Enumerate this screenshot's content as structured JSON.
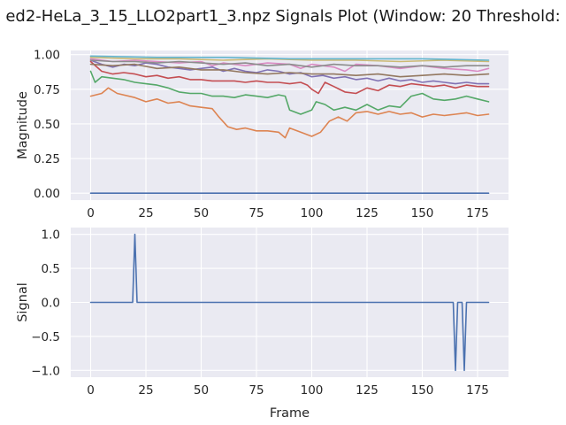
{
  "figure": {
    "title": "ed2-HeLa_3_15_LLO2part1_3.npz Signals Plot (Window: 20 Threshold:",
    "background": "#ffffff",
    "axes_facecolor": "#eaeaf2",
    "grid_color": "#ffffff"
  },
  "chart_data": [
    {
      "type": "line",
      "xlabel": "",
      "ylabel": "Magnitude",
      "xlim": [
        -9,
        189
      ],
      "ylim": [
        -0.05,
        1.03
      ],
      "xticks": [
        0,
        25,
        50,
        75,
        100,
        125,
        150,
        175
      ],
      "yticks": [
        0.0,
        0.25,
        0.5,
        0.75,
        1.0
      ],
      "xtick_labels": [
        "0",
        "25",
        "50",
        "75",
        "100",
        "125",
        "150",
        "175"
      ],
      "ytick_labels": [
        "0.00",
        "0.25",
        "0.50",
        "0.75",
        "1.00"
      ],
      "grid": true,
      "series": [
        {
          "color": "#4c72b0",
          "points": [
            [
              0,
              0.0
            ],
            [
              180,
              0.0
            ]
          ]
        },
        {
          "color": "#dd8452",
          "points": [
            [
              0,
              0.7
            ],
            [
              5,
              0.72
            ],
            [
              8,
              0.76
            ],
            [
              12,
              0.72
            ],
            [
              20,
              0.69
            ],
            [
              25,
              0.66
            ],
            [
              30,
              0.68
            ],
            [
              35,
              0.65
            ],
            [
              40,
              0.66
            ],
            [
              45,
              0.63
            ],
            [
              50,
              0.62
            ],
            [
              55,
              0.61
            ],
            [
              58,
              0.55
            ],
            [
              62,
              0.48
            ],
            [
              66,
              0.46
            ],
            [
              70,
              0.47
            ],
            [
              75,
              0.45
            ],
            [
              80,
              0.45
            ],
            [
              85,
              0.44
            ],
            [
              88,
              0.4
            ],
            [
              90,
              0.47
            ],
            [
              95,
              0.44
            ],
            [
              100,
              0.41
            ],
            [
              104,
              0.44
            ],
            [
              108,
              0.52
            ],
            [
              112,
              0.55
            ],
            [
              116,
              0.52
            ],
            [
              120,
              0.58
            ],
            [
              125,
              0.59
            ],
            [
              130,
              0.57
            ],
            [
              135,
              0.59
            ],
            [
              140,
              0.57
            ],
            [
              145,
              0.58
            ],
            [
              150,
              0.55
            ],
            [
              155,
              0.57
            ],
            [
              160,
              0.56
            ],
            [
              165,
              0.57
            ],
            [
              170,
              0.58
            ],
            [
              175,
              0.56
            ],
            [
              180,
              0.57
            ]
          ]
        },
        {
          "color": "#55a868",
          "points": [
            [
              0,
              0.88
            ],
            [
              2,
              0.8
            ],
            [
              5,
              0.84
            ],
            [
              10,
              0.83
            ],
            [
              15,
              0.82
            ],
            [
              20,
              0.8
            ],
            [
              25,
              0.79
            ],
            [
              30,
              0.78
            ],
            [
              35,
              0.76
            ],
            [
              40,
              0.73
            ],
            [
              45,
              0.72
            ],
            [
              50,
              0.72
            ],
            [
              55,
              0.7
            ],
            [
              60,
              0.7
            ],
            [
              65,
              0.69
            ],
            [
              70,
              0.71
            ],
            [
              75,
              0.7
            ],
            [
              80,
              0.69
            ],
            [
              85,
              0.71
            ],
            [
              88,
              0.7
            ],
            [
              90,
              0.6
            ],
            [
              95,
              0.57
            ],
            [
              100,
              0.6
            ],
            [
              102,
              0.66
            ],
            [
              106,
              0.64
            ],
            [
              110,
              0.6
            ],
            [
              115,
              0.62
            ],
            [
              120,
              0.6
            ],
            [
              125,
              0.64
            ],
            [
              130,
              0.6
            ],
            [
              135,
              0.63
            ],
            [
              140,
              0.62
            ],
            [
              145,
              0.7
            ],
            [
              150,
              0.72
            ],
            [
              155,
              0.68
            ],
            [
              160,
              0.67
            ],
            [
              165,
              0.68
            ],
            [
              170,
              0.7
            ],
            [
              175,
              0.68
            ],
            [
              180,
              0.66
            ]
          ]
        },
        {
          "color": "#c44e52",
          "points": [
            [
              0,
              0.95
            ],
            [
              5,
              0.88
            ],
            [
              10,
              0.86
            ],
            [
              15,
              0.87
            ],
            [
              20,
              0.86
            ],
            [
              25,
              0.84
            ],
            [
              30,
              0.85
            ],
            [
              35,
              0.83
            ],
            [
              40,
              0.84
            ],
            [
              45,
              0.82
            ],
            [
              50,
              0.82
            ],
            [
              55,
              0.81
            ],
            [
              60,
              0.81
            ],
            [
              65,
              0.81
            ],
            [
              70,
              0.8
            ],
            [
              75,
              0.81
            ],
            [
              80,
              0.8
            ],
            [
              85,
              0.8
            ],
            [
              90,
              0.79
            ],
            [
              95,
              0.8
            ],
            [
              98,
              0.78
            ],
            [
              100,
              0.75
            ],
            [
              103,
              0.72
            ],
            [
              106,
              0.8
            ],
            [
              110,
              0.77
            ],
            [
              115,
              0.73
            ],
            [
              120,
              0.72
            ],
            [
              125,
              0.76
            ],
            [
              130,
              0.74
            ],
            [
              135,
              0.78
            ],
            [
              140,
              0.77
            ],
            [
              145,
              0.79
            ],
            [
              150,
              0.78
            ],
            [
              155,
              0.77
            ],
            [
              160,
              0.78
            ],
            [
              165,
              0.76
            ],
            [
              170,
              0.78
            ],
            [
              175,
              0.77
            ],
            [
              180,
              0.77
            ]
          ]
        },
        {
          "color": "#8172b3",
          "points": [
            [
              0,
              0.96
            ],
            [
              5,
              0.93
            ],
            [
              10,
              0.91
            ],
            [
              15,
              0.93
            ],
            [
              20,
              0.92
            ],
            [
              25,
              0.94
            ],
            [
              30,
              0.93
            ],
            [
              35,
              0.91
            ],
            [
              40,
              0.9
            ],
            [
              45,
              0.89
            ],
            [
              50,
              0.9
            ],
            [
              55,
              0.91
            ],
            [
              60,
              0.88
            ],
            [
              65,
              0.9
            ],
            [
              70,
              0.88
            ],
            [
              75,
              0.87
            ],
            [
              80,
              0.89
            ],
            [
              85,
              0.88
            ],
            [
              90,
              0.86
            ],
            [
              95,
              0.87
            ],
            [
              100,
              0.84
            ],
            [
              105,
              0.85
            ],
            [
              110,
              0.83
            ],
            [
              115,
              0.84
            ],
            [
              120,
              0.82
            ],
            [
              125,
              0.83
            ],
            [
              130,
              0.81
            ],
            [
              135,
              0.83
            ],
            [
              140,
              0.81
            ],
            [
              145,
              0.82
            ],
            [
              150,
              0.8
            ],
            [
              155,
              0.81
            ],
            [
              160,
              0.8
            ],
            [
              165,
              0.79
            ],
            [
              170,
              0.8
            ],
            [
              175,
              0.79
            ],
            [
              180,
              0.79
            ]
          ]
        },
        {
          "color": "#937860",
          "points": [
            [
              0,
              0.93
            ],
            [
              10,
              0.92
            ],
            [
              20,
              0.93
            ],
            [
              30,
              0.9
            ],
            [
              40,
              0.91
            ],
            [
              50,
              0.89
            ],
            [
              60,
              0.89
            ],
            [
              70,
              0.87
            ],
            [
              80,
              0.86
            ],
            [
              90,
              0.87
            ],
            [
              100,
              0.86
            ],
            [
              110,
              0.86
            ],
            [
              120,
              0.85
            ],
            [
              130,
              0.86
            ],
            [
              140,
              0.84
            ],
            [
              150,
              0.85
            ],
            [
              160,
              0.86
            ],
            [
              170,
              0.85
            ],
            [
              180,
              0.86
            ]
          ]
        },
        {
          "color": "#da8bc3",
          "points": [
            [
              0,
              0.97
            ],
            [
              10,
              0.95
            ],
            [
              20,
              0.96
            ],
            [
              30,
              0.95
            ],
            [
              40,
              0.94
            ],
            [
              50,
              0.95
            ],
            [
              55,
              0.92
            ],
            [
              60,
              0.94
            ],
            [
              70,
              0.92
            ],
            [
              80,
              0.94
            ],
            [
              90,
              0.93
            ],
            [
              95,
              0.9
            ],
            [
              100,
              0.93
            ],
            [
              110,
              0.91
            ],
            [
              115,
              0.88
            ],
            [
              120,
              0.93
            ],
            [
              130,
              0.92
            ],
            [
              140,
              0.9
            ],
            [
              150,
              0.92
            ],
            [
              160,
              0.9
            ],
            [
              170,
              0.89
            ],
            [
              175,
              0.88
            ],
            [
              180,
              0.9
            ]
          ]
        },
        {
          "color": "#8c8c8c",
          "points": [
            [
              0,
              0.96
            ],
            [
              10,
              0.95
            ],
            [
              20,
              0.95
            ],
            [
              30,
              0.94
            ],
            [
              40,
              0.95
            ],
            [
              50,
              0.94
            ],
            [
              60,
              0.93
            ],
            [
              70,
              0.94
            ],
            [
              80,
              0.92
            ],
            [
              90,
              0.93
            ],
            [
              100,
              0.91
            ],
            [
              110,
              0.93
            ],
            [
              120,
              0.92
            ],
            [
              130,
              0.92
            ],
            [
              140,
              0.91
            ],
            [
              150,
              0.92
            ],
            [
              160,
              0.91
            ],
            [
              170,
              0.92
            ],
            [
              180,
              0.92
            ]
          ]
        },
        {
          "color": "#ccb974",
          "points": [
            [
              0,
              0.98
            ],
            [
              20,
              0.97
            ],
            [
              40,
              0.97
            ],
            [
              60,
              0.96
            ],
            [
              80,
              0.97
            ],
            [
              100,
              0.96
            ],
            [
              120,
              0.96
            ],
            [
              140,
              0.95
            ],
            [
              160,
              0.96
            ],
            [
              180,
              0.95
            ]
          ]
        },
        {
          "color": "#64b5cd",
          "points": [
            [
              0,
              0.99
            ],
            [
              30,
              0.98
            ],
            [
              60,
              0.98
            ],
            [
              90,
              0.97
            ],
            [
              120,
              0.97
            ],
            [
              150,
              0.97
            ],
            [
              180,
              0.96
            ]
          ]
        }
      ]
    },
    {
      "type": "line",
      "xlabel": "Frame",
      "ylabel": "Signal",
      "xlim": [
        -9,
        189
      ],
      "ylim": [
        -1.1,
        1.1
      ],
      "xticks": [
        0,
        25,
        50,
        75,
        100,
        125,
        150,
        175
      ],
      "yticks": [
        -1.0,
        -0.5,
        0.0,
        0.5,
        1.0
      ],
      "xtick_labels": [
        "0",
        "25",
        "50",
        "75",
        "100",
        "125",
        "150",
        "175"
      ],
      "ytick_labels": [
        "−1.0",
        "−0.5",
        "0.0",
        "0.5",
        "1.0"
      ],
      "grid": true,
      "series": [
        {
          "color": "#4c72b0",
          "points": [
            [
              0,
              0
            ],
            [
              19,
              0
            ],
            [
              20,
              1
            ],
            [
              21,
              0
            ],
            [
              164,
              0
            ],
            [
              165,
              -1
            ],
            [
              166,
              0
            ],
            [
              168,
              0
            ],
            [
              169,
              -1
            ],
            [
              170,
              0
            ],
            [
              180,
              0
            ]
          ]
        }
      ]
    }
  ]
}
